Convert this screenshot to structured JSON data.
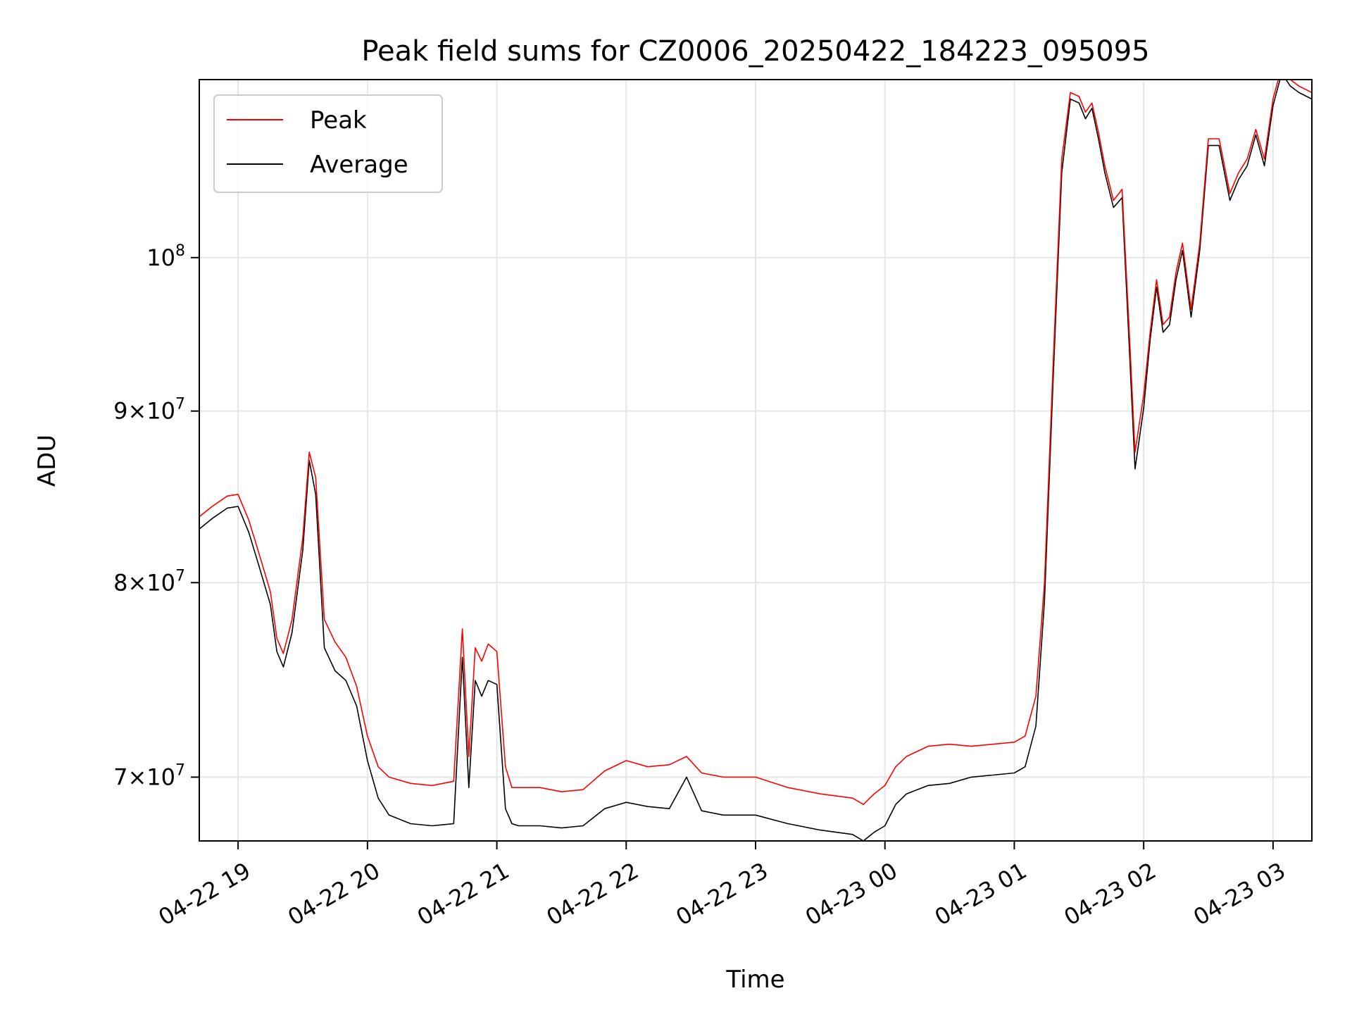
{
  "chart_data": {
    "type": "line",
    "title": "Peak field sums for CZ0006_20250422_184223_095095",
    "xlabel": "Time",
    "ylabel": "ADU",
    "y_scale": "log",
    "xlim": [
      "2025-04-22 18:42",
      "2025-04-23 03:18"
    ],
    "ylim": [
      67000000,
      113000000
    ],
    "grid": true,
    "legend_position": "upper left",
    "x_ticks": [
      {
        "value": "2025-04-22 19:00",
        "label": "04-22 19"
      },
      {
        "value": "2025-04-22 20:00",
        "label": "04-22 20"
      },
      {
        "value": "2025-04-22 21:00",
        "label": "04-22 21"
      },
      {
        "value": "2025-04-22 22:00",
        "label": "04-22 22"
      },
      {
        "value": "2025-04-22 23:00",
        "label": "04-22 23"
      },
      {
        "value": "2025-04-23 00:00",
        "label": "04-23 00"
      },
      {
        "value": "2025-04-23 01:00",
        "label": "04-23 01"
      },
      {
        "value": "2025-04-23 02:00",
        "label": "04-23 02"
      },
      {
        "value": "2025-04-23 03:00",
        "label": "04-23 03"
      }
    ],
    "y_ticks": [
      {
        "value": 70000000,
        "mant": "7",
        "exp": "7"
      },
      {
        "value": 80000000,
        "mant": "8",
        "exp": "7"
      },
      {
        "value": 90000000,
        "mant": "9",
        "exp": "7"
      },
      {
        "value": 100000000,
        "mant": "",
        "exp": "8"
      }
    ],
    "series": [
      {
        "name": "Peak",
        "color": "#ff0000",
        "x": [
          "2025-04-22 18:42",
          "2025-04-22 18:48",
          "2025-04-22 18:55",
          "2025-04-22 19:00",
          "2025-04-22 19:05",
          "2025-04-22 19:10",
          "2025-04-22 19:15",
          "2025-04-22 19:18",
          "2025-04-22 19:21",
          "2025-04-22 19:25",
          "2025-04-22 19:30",
          "2025-04-22 19:33",
          "2025-04-22 19:36",
          "2025-04-22 19:40",
          "2025-04-22 19:45",
          "2025-04-22 19:50",
          "2025-04-22 19:55",
          "2025-04-22 20:00",
          "2025-04-22 20:05",
          "2025-04-22 20:10",
          "2025-04-22 20:20",
          "2025-04-22 20:30",
          "2025-04-22 20:40",
          "2025-04-22 20:44",
          "2025-04-22 20:47",
          "2025-04-22 20:50",
          "2025-04-22 20:53",
          "2025-04-22 20:56",
          "2025-04-22 21:00",
          "2025-04-22 21:04",
          "2025-04-22 21:07",
          "2025-04-22 21:10",
          "2025-04-22 21:20",
          "2025-04-22 21:30",
          "2025-04-22 21:40",
          "2025-04-22 21:50",
          "2025-04-22 22:00",
          "2025-04-22 22:10",
          "2025-04-22 22:20",
          "2025-04-22 22:28",
          "2025-04-22 22:35",
          "2025-04-22 22:45",
          "2025-04-22 23:00",
          "2025-04-22 23:15",
          "2025-04-22 23:30",
          "2025-04-22 23:45",
          "2025-04-22 23:50",
          "2025-04-22 23:55",
          "2025-04-23 00:00",
          "2025-04-23 00:05",
          "2025-04-23 00:10",
          "2025-04-23 00:20",
          "2025-04-23 00:30",
          "2025-04-23 00:40",
          "2025-04-23 00:50",
          "2025-04-23 01:00",
          "2025-04-23 01:05",
          "2025-04-23 01:10",
          "2025-04-23 01:14",
          "2025-04-23 01:18",
          "2025-04-23 01:22",
          "2025-04-23 01:26",
          "2025-04-23 01:30",
          "2025-04-23 01:33",
          "2025-04-23 01:36",
          "2025-04-23 01:39",
          "2025-04-23 01:42",
          "2025-04-23 01:46",
          "2025-04-23 01:50",
          "2025-04-23 01:53",
          "2025-04-23 01:56",
          "2025-04-23 02:00",
          "2025-04-23 02:03",
          "2025-04-23 02:06",
          "2025-04-23 02:09",
          "2025-04-23 02:12",
          "2025-04-23 02:15",
          "2025-04-23 02:18",
          "2025-04-23 02:22",
          "2025-04-23 02:26",
          "2025-04-23 02:30",
          "2025-04-23 02:35",
          "2025-04-23 02:40",
          "2025-04-23 02:44",
          "2025-04-23 02:48",
          "2025-04-23 02:52",
          "2025-04-23 02:56",
          "2025-04-23 03:00",
          "2025-04-23 03:04",
          "2025-04-23 03:08",
          "2025-04-23 03:12",
          "2025-04-23 03:18"
        ],
        "values": [
          83700000,
          84300000,
          84900000,
          85000000,
          83500000,
          81500000,
          79500000,
          77000000,
          76200000,
          78000000,
          82500000,
          87500000,
          86000000,
          78000000,
          76800000,
          76000000,
          74500000,
          72000000,
          70500000,
          70000000,
          69700000,
          69600000,
          69800000,
          77500000,
          71000000,
          76500000,
          75800000,
          76700000,
          76300000,
          70500000,
          69500000,
          69500000,
          69500000,
          69300000,
          69400000,
          70300000,
          70800000,
          70500000,
          70600000,
          71000000,
          70200000,
          70000000,
          70000000,
          69500000,
          69200000,
          69000000,
          68700000,
          69200000,
          69600000,
          70500000,
          71000000,
          71500000,
          71600000,
          71500000,
          71600000,
          71700000,
          72000000,
          74000000,
          80000000,
          93000000,
          107000000,
          112000000,
          111700000,
          110500000,
          111200000,
          109000000,
          106500000,
          104000000,
          104800000,
          96000000,
          87500000,
          91000000,
          95000000,
          98500000,
          95500000,
          96000000,
          99000000,
          101000000,
          96500000,
          101000000,
          108500000,
          108500000,
          104500000,
          106000000,
          107000000,
          109200000,
          107000000,
          111500000,
          114000000,
          113000000,
          112500000,
          112000000
        ]
      },
      {
        "name": "Average",
        "color": "#000000",
        "x": [
          "2025-04-22 18:42",
          "2025-04-22 18:48",
          "2025-04-22 18:55",
          "2025-04-22 19:00",
          "2025-04-22 19:05",
          "2025-04-22 19:10",
          "2025-04-22 19:15",
          "2025-04-22 19:18",
          "2025-04-22 19:21",
          "2025-04-22 19:25",
          "2025-04-22 19:30",
          "2025-04-22 19:33",
          "2025-04-22 19:36",
          "2025-04-22 19:40",
          "2025-04-22 19:45",
          "2025-04-22 19:50",
          "2025-04-22 19:55",
          "2025-04-22 20:00",
          "2025-04-22 20:05",
          "2025-04-22 20:10",
          "2025-04-22 20:20",
          "2025-04-22 20:30",
          "2025-04-22 20:40",
          "2025-04-22 20:44",
          "2025-04-22 20:47",
          "2025-04-22 20:50",
          "2025-04-22 20:53",
          "2025-04-22 20:56",
          "2025-04-22 21:00",
          "2025-04-22 21:04",
          "2025-04-22 21:07",
          "2025-04-22 21:10",
          "2025-04-22 21:20",
          "2025-04-22 21:30",
          "2025-04-22 21:40",
          "2025-04-22 21:50",
          "2025-04-22 22:00",
          "2025-04-22 22:10",
          "2025-04-22 22:20",
          "2025-04-22 22:28",
          "2025-04-22 22:35",
          "2025-04-22 22:45",
          "2025-04-22 23:00",
          "2025-04-22 23:15",
          "2025-04-22 23:30",
          "2025-04-22 23:45",
          "2025-04-22 23:50",
          "2025-04-22 23:55",
          "2025-04-23 00:00",
          "2025-04-23 00:05",
          "2025-04-23 00:10",
          "2025-04-23 00:20",
          "2025-04-23 00:30",
          "2025-04-23 00:40",
          "2025-04-23 00:50",
          "2025-04-23 01:00",
          "2025-04-23 01:05",
          "2025-04-23 01:10",
          "2025-04-23 01:14",
          "2025-04-23 01:18",
          "2025-04-23 01:22",
          "2025-04-23 01:26",
          "2025-04-23 01:30",
          "2025-04-23 01:33",
          "2025-04-23 01:36",
          "2025-04-23 01:39",
          "2025-04-23 01:42",
          "2025-04-23 01:46",
          "2025-04-23 01:50",
          "2025-04-23 01:53",
          "2025-04-23 01:56",
          "2025-04-23 02:00",
          "2025-04-23 02:03",
          "2025-04-23 02:06",
          "2025-04-23 02:09",
          "2025-04-23 02:12",
          "2025-04-23 02:15",
          "2025-04-23 02:18",
          "2025-04-23 02:22",
          "2025-04-23 02:26",
          "2025-04-23 02:30",
          "2025-04-23 02:35",
          "2025-04-23 02:40",
          "2025-04-23 02:44",
          "2025-04-23 02:48",
          "2025-04-23 02:52",
          "2025-04-23 02:56",
          "2025-04-23 03:00",
          "2025-04-23 03:04",
          "2025-04-23 03:08",
          "2025-04-23 03:12",
          "2025-04-23 03:18"
        ],
        "values": [
          83000000,
          83600000,
          84200000,
          84300000,
          82800000,
          80800000,
          78800000,
          76300000,
          75500000,
          77300000,
          81800000,
          87000000,
          85000000,
          76500000,
          75300000,
          74800000,
          73500000,
          70800000,
          69000000,
          68200000,
          67800000,
          67700000,
          67800000,
          76000000,
          69500000,
          74800000,
          74000000,
          74800000,
          74600000,
          68500000,
          67800000,
          67700000,
          67700000,
          67600000,
          67700000,
          68500000,
          68800000,
          68600000,
          68500000,
          70000000,
          68400000,
          68200000,
          68200000,
          67800000,
          67500000,
          67300000,
          67000000,
          67400000,
          67700000,
          68700000,
          69200000,
          69600000,
          69700000,
          70000000,
          70100000,
          70200000,
          70500000,
          72500000,
          79000000,
          92000000,
          106000000,
          111500000,
          111200000,
          110000000,
          110800000,
          108500000,
          106000000,
          103500000,
          104200000,
          95000000,
          86500000,
          90200000,
          94500000,
          98000000,
          95000000,
          95500000,
          98500000,
          100500000,
          96000000,
          100500000,
          108000000,
          108000000,
          104000000,
          105500000,
          106500000,
          108800000,
          106500000,
          111000000,
          113500000,
          112500000,
          112000000,
          111500000
        ]
      }
    ]
  }
}
